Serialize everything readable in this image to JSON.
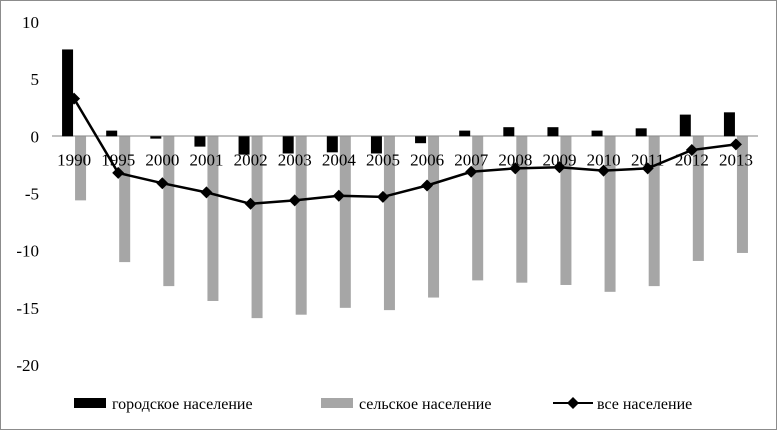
{
  "chart_data": {
    "type": "bar",
    "categories": [
      "1990",
      "1995",
      "2000",
      "2001",
      "2002",
      "2003",
      "2004",
      "2005",
      "2006",
      "2007",
      "2008",
      "2009",
      "2010",
      "2011",
      "2012",
      "2013"
    ],
    "series": [
      {
        "name": "городское население",
        "kind": "bar",
        "color": "#000000",
        "values": [
          7.6,
          0.5,
          -0.2,
          -0.9,
          -1.6,
          -1.5,
          -1.4,
          -1.5,
          -0.6,
          0.5,
          0.8,
          0.8,
          0.5,
          0.7,
          1.9,
          2.1
        ]
      },
      {
        "name": "сельское население",
        "kind": "bar",
        "color": "#a6a6a6",
        "values": [
          -5.6,
          -11.0,
          -13.1,
          -14.4,
          -15.9,
          -15.6,
          -15.0,
          -15.2,
          -14.1,
          -12.6,
          -12.8,
          -13.0,
          -13.6,
          -13.1,
          -10.9,
          -10.2
        ]
      },
      {
        "name": "все население",
        "kind": "line",
        "color": "#000000",
        "marker": "diamond",
        "values": [
          3.3,
          -3.2,
          -4.1,
          -4.9,
          -5.9,
          -5.6,
          -5.2,
          -5.3,
          -4.3,
          -3.1,
          -2.8,
          -2.7,
          -3.0,
          -2.8,
          -1.2,
          -0.7
        ]
      }
    ],
    "yticks": [
      "10",
      "5",
      "0",
      "-5",
      "-10",
      "-15",
      "-20"
    ],
    "ylim": [
      -20,
      10
    ],
    "xlabel": "",
    "ylabel": "",
    "title": "",
    "grid": false,
    "legend_position": "bottom"
  }
}
